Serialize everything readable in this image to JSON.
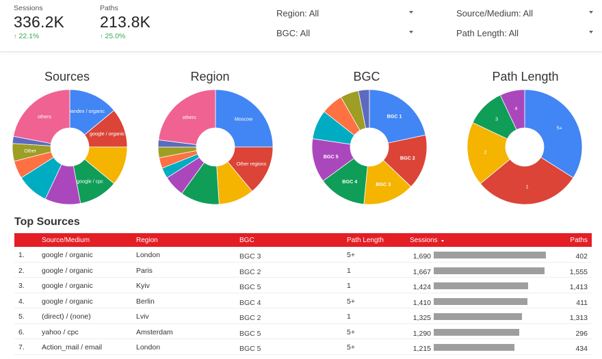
{
  "kpis": [
    {
      "label": "Sessions",
      "value": "336.2K",
      "delta": "22.1%"
    },
    {
      "label": "Paths",
      "value": "213.8K",
      "delta": "25.0%"
    }
  ],
  "filters": {
    "region": "Region: All",
    "bgc": "BGC: All",
    "source_medium": "Source/Medium: All",
    "path_length": "Path Length: All"
  },
  "colors": {
    "accent": "#e31e24",
    "positive": "#34a853",
    "bar": "#9e9e9e"
  },
  "chart_data": [
    {
      "type": "pie",
      "title": "Sources",
      "labels": [
        "yandex / organic",
        "google / organic",
        "",
        "google / cpc",
        "",
        "",
        "",
        "Other",
        "",
        "others"
      ],
      "values": [
        14,
        11,
        11,
        11,
        10,
        9,
        5,
        5,
        2,
        22
      ],
      "colors": [
        "#4285f4",
        "#db4437",
        "#f4b400",
        "#0f9d58",
        "#ab47bc",
        "#00acc1",
        "#ff7043",
        "#9e9d24",
        "#5c6bc0",
        "#f06292"
      ]
    },
    {
      "type": "pie",
      "title": "Region",
      "labels": [
        "Moscow",
        "Other regions",
        "",
        "",
        "",
        "",
        "",
        "",
        "",
        "others"
      ],
      "values": [
        25,
        14,
        10,
        11,
        6,
        3,
        3,
        3,
        2,
        23
      ],
      "colors": [
        "#4285f4",
        "#db4437",
        "#f4b400",
        "#0f9d58",
        "#ab47bc",
        "#00acc1",
        "#ff7043",
        "#9e9d24",
        "#5c6bc0",
        "#f06292"
      ]
    },
    {
      "type": "pie",
      "title": "BGC",
      "labels": [
        "BGC 1",
        "BGC 2",
        "BGC 3",
        "BGC 4",
        "BGC 5",
        "",
        "",
        "",
        ""
      ],
      "values": [
        21,
        15,
        14,
        13,
        12,
        8,
        6,
        5,
        3
      ],
      "colors": [
        "#4285f4",
        "#db4437",
        "#f4b400",
        "#0f9d58",
        "#ab47bc",
        "#00acc1",
        "#ff7043",
        "#9e9d24",
        "#5c6bc0"
      ]
    },
    {
      "type": "pie",
      "title": "Path Length",
      "labels": [
        "5+",
        "1",
        "2",
        "3",
        "4"
      ],
      "values": [
        34,
        30,
        18,
        11,
        7
      ],
      "colors": [
        "#4285f4",
        "#db4437",
        "#f4b400",
        "#0f9d58",
        "#ab47bc"
      ]
    }
  ],
  "table": {
    "title": "Top Sources",
    "headers": [
      "Source/Medium",
      "Region",
      "BGC",
      "Path Length",
      "Sessions",
      "Paths"
    ],
    "max_sessions": 1690,
    "rows": [
      {
        "n": "1.",
        "source": "google / organic",
        "region": "London",
        "bgc": "BGC 3",
        "path_length": "5+",
        "sessions": 1690,
        "sessions_label": "1,690",
        "paths": "402"
      },
      {
        "n": "2.",
        "source": "google / organic",
        "region": "Paris",
        "bgc": "BGC 2",
        "path_length": "1",
        "sessions": 1667,
        "sessions_label": "1,667",
        "paths": "1,555"
      },
      {
        "n": "3.",
        "source": "google / organic",
        "region": "Kyiv",
        "bgc": "BGC 5",
        "path_length": "1",
        "sessions": 1424,
        "sessions_label": "1,424",
        "paths": "1,413"
      },
      {
        "n": "4.",
        "source": "google / organic",
        "region": "Berlin",
        "bgc": "BGC 4",
        "path_length": "5+",
        "sessions": 1410,
        "sessions_label": "1,410",
        "paths": "411"
      },
      {
        "n": "5.",
        "source": "(direct) / (none)",
        "region": "Lviv",
        "bgc": "BGC 2",
        "path_length": "1",
        "sessions": 1325,
        "sessions_label": "1,325",
        "paths": "1,313"
      },
      {
        "n": "6.",
        "source": "yahoo / cpc",
        "region": "Amsterdam",
        "bgc": "BGC 5",
        "path_length": "5+",
        "sessions": 1290,
        "sessions_label": "1,290",
        "paths": "296"
      },
      {
        "n": "7.",
        "source": "Action_mail / email",
        "region": "London",
        "bgc": "BGC 5",
        "path_length": "5+",
        "sessions": 1215,
        "sessions_label": "1,215",
        "paths": "434"
      }
    ]
  }
}
